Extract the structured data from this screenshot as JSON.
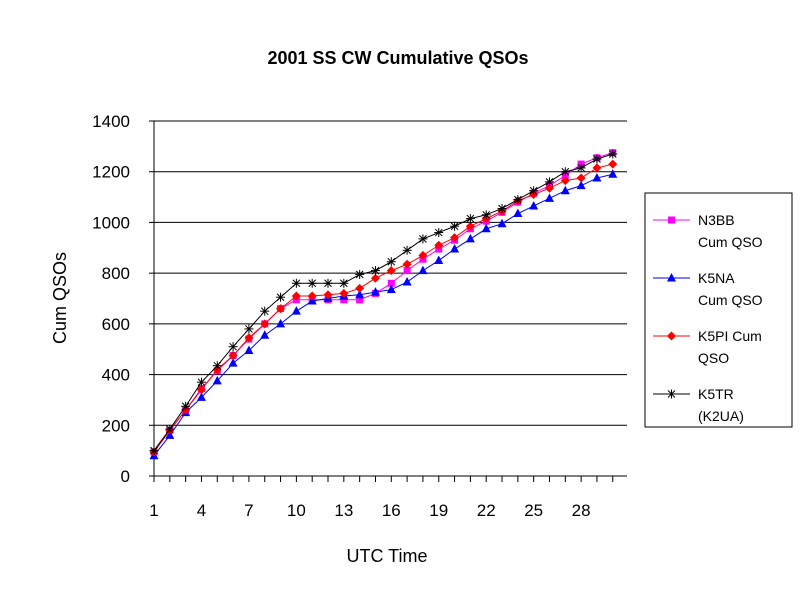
{
  "chart_data": {
    "type": "line",
    "title": "2001 SS CW Cumulative QSOs",
    "xlabel": "UTC Time",
    "ylabel": "Cum QSOs",
    "ylim": [
      0,
      1400
    ],
    "yticks": [
      0,
      200,
      400,
      600,
      800,
      1000,
      1200,
      1400
    ],
    "x": [
      1,
      2,
      3,
      4,
      5,
      6,
      7,
      8,
      9,
      10,
      11,
      12,
      13,
      14,
      15,
      16,
      17,
      18,
      19,
      20,
      21,
      22,
      23,
      24,
      25,
      26,
      27,
      28,
      29,
      30
    ],
    "xtick_labels": [
      "1",
      "4",
      "7",
      "10",
      "13",
      "16",
      "19",
      "22",
      "25",
      "28"
    ],
    "grid": "horizontal",
    "legend_position": "right",
    "series": [
      {
        "name_lines": [
          "N3BB",
          "Cum QSO"
        ],
        "color": "#ff00ff",
        "marker": "square",
        "values": [
          95,
          180,
          260,
          345,
          415,
          475,
          540,
          600,
          660,
          695,
          695,
          695,
          695,
          695,
          720,
          760,
          810,
          855,
          895,
          930,
          975,
          1005,
          1040,
          1080,
          1115,
          1145,
          1185,
          1230,
          1255,
          1275
        ]
      },
      {
        "name_lines": [
          "K5NA",
          "Cum QSO"
        ],
        "color": "#0000ff",
        "marker": "triangle",
        "values": [
          80,
          160,
          250,
          310,
          375,
          445,
          495,
          555,
          600,
          650,
          690,
          700,
          710,
          715,
          725,
          735,
          765,
          810,
          850,
          895,
          935,
          975,
          995,
          1035,
          1065,
          1095,
          1125,
          1145,
          1175,
          1190
        ]
      },
      {
        "name_lines": [
          "K5PI Cum",
          "QSO"
        ],
        "color": "#ff0000",
        "marker": "diamond",
        "values": [
          95,
          180,
          260,
          340,
          420,
          475,
          545,
          600,
          660,
          710,
          710,
          715,
          720,
          740,
          780,
          810,
          835,
          870,
          910,
          940,
          985,
          1015,
          1045,
          1085,
          1110,
          1135,
          1165,
          1175,
          1215,
          1230
        ]
      },
      {
        "name_lines": [
          "K5TR",
          "(K2UA)"
        ],
        "color": "#000000",
        "marker": "star",
        "values": [
          100,
          185,
          275,
          370,
          435,
          510,
          580,
          650,
          705,
          760,
          760,
          760,
          760,
          795,
          810,
          845,
          890,
          935,
          960,
          985,
          1015,
          1030,
          1055,
          1090,
          1125,
          1160,
          1200,
          1215,
          1250,
          1270
        ]
      }
    ]
  }
}
